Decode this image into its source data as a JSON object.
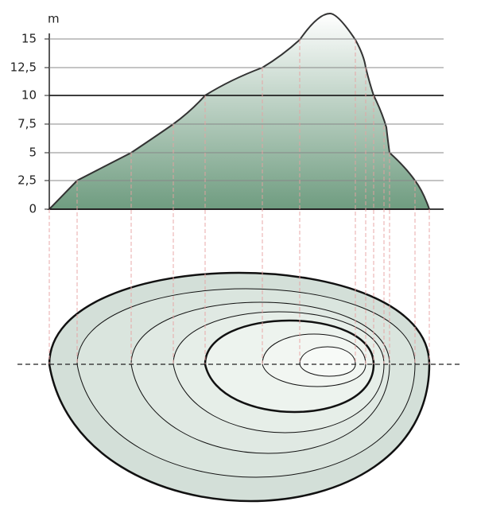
{
  "axis": {
    "unit": "m",
    "ticks": [
      "15",
      "12,5",
      "10",
      "7,5",
      "5",
      "2,5",
      "0"
    ]
  }
}
